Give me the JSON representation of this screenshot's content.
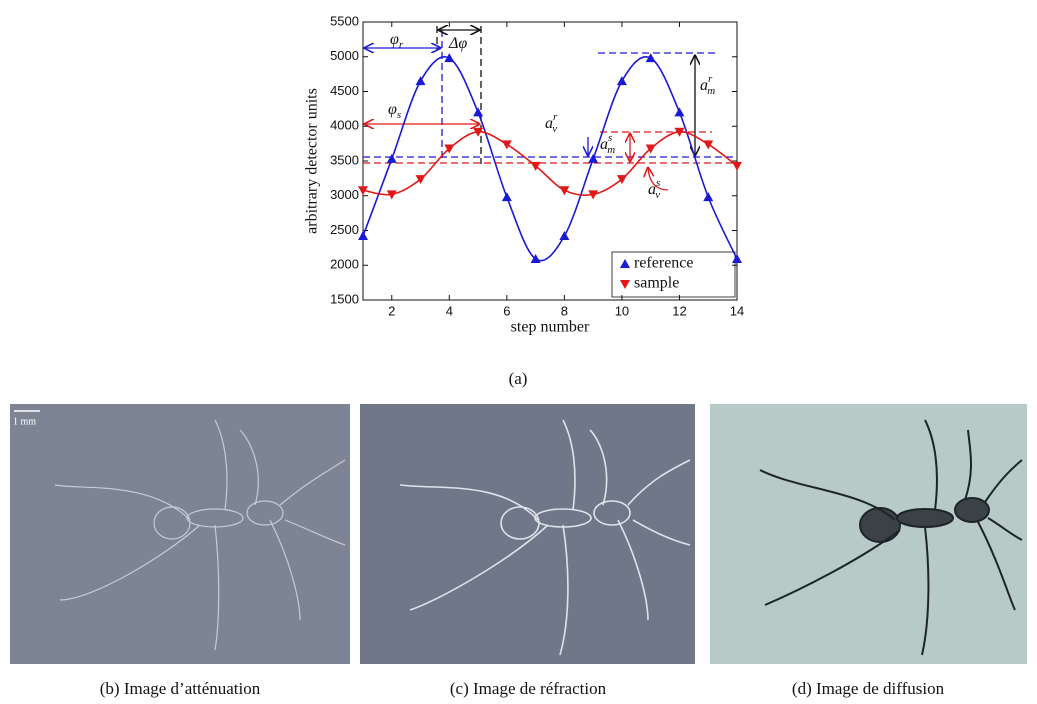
{
  "chart_data": {
    "type": "line",
    "ylabel": "arbitrary detector units",
    "xlabel": "step number",
    "x": [
      1,
      2,
      3,
      4,
      5,
      6,
      7,
      8,
      9,
      10,
      11,
      12,
      13,
      14
    ],
    "series": [
      {
        "name": "reference",
        "color": "#1a1ad6",
        "marker": "up",
        "values": [
          2420,
          3530,
          4650,
          4980,
          4200,
          2980,
          2090,
          2420,
          3530,
          4650,
          4980,
          4200,
          2980,
          2090
        ]
      },
      {
        "name": "sample",
        "color": "#e01818",
        "marker": "down",
        "values": [
          3080,
          3020,
          3240,
          3680,
          3920,
          3740,
          3430,
          3080,
          3020,
          3240,
          3680,
          3920,
          3740,
          3430
        ]
      }
    ],
    "xlim": [
      1,
      14
    ],
    "xticks": [
      2,
      4,
      6,
      8,
      10,
      12,
      14
    ],
    "ylim": [
      1500,
      5500
    ],
    "yticks": [
      1500,
      2000,
      2500,
      3000,
      3500,
      4000,
      4500,
      5000,
      5500
    ],
    "legend": "lower right",
    "annotations": [
      {
        "text": "φ",
        "sub": "r"
      },
      {
        "text": "Δφ"
      },
      {
        "text": "φ",
        "sub": "s"
      },
      {
        "text": "a",
        "sub": "v",
        "sup": "r"
      },
      {
        "text": "a",
        "sub": "m",
        "sup": "s"
      },
      {
        "text": "a",
        "sub": "m",
        "sup": "r"
      },
      {
        "text": "a",
        "sub": "v",
        "sup": "s"
      }
    ]
  },
  "chart_caption": "(a)",
  "panels": [
    {
      "scale_bar": "1 mm",
      "caption": "(b) Image d’atténuation"
    },
    {
      "caption": "(c) Image de réfraction"
    },
    {
      "caption": "(d) Image de diffusion"
    }
  ]
}
